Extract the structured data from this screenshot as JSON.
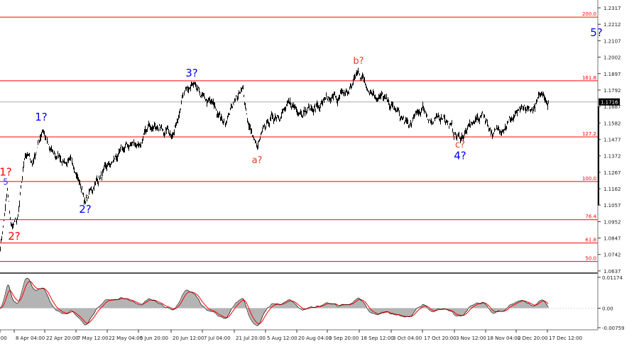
{
  "chart_data": {
    "type": "line",
    "title": "",
    "ylim": [
      1.0623,
      1.2367
    ],
    "y_ticks": [
      "1.2317",
      "1.2212",
      "1.2107",
      "1.2002",
      "1.1897",
      "1.1792",
      "1.1687",
      "1.1582",
      "1.1477",
      "1.1372",
      "1.1267",
      "1.1162",
      "1.1057",
      "1.0952",
      "1.0847",
      "1.0742",
      "1.0637"
    ],
    "x_ticks": [
      "2:00",
      "8 Apr 04:00",
      "22 Apr 20:00",
      "7 May 12:00",
      "22 May 04:00",
      "5 Jun 20:00",
      "20 Jun 12:00",
      "7 Jul 04:00",
      "21 Jul 20:00",
      "5 Aug 12:00",
      "20 Aug 04:00",
      "3 Sep 20:00",
      "18 Sep 12:00",
      "3 Oct 04:00",
      "17 Oct 20:00",
      "3 Nov 12:00",
      "18 Nov 04:00",
      "2 Dec 20:00",
      "17 Dec 12:00"
    ],
    "current_price": "1.1716",
    "price_series": {
      "bar": [
        0,
        10,
        15,
        25,
        35,
        45,
        60,
        70,
        90,
        105,
        120,
        135,
        150,
        165,
        180,
        200,
        215,
        230,
        245,
        255,
        270,
        285,
        300,
        315,
        330,
        342,
        350,
        362,
        375,
        390,
        410,
        430,
        450,
        470,
        490,
        505,
        520,
        540,
        560,
        575,
        595,
        610,
        625,
        640,
        648,
        665,
        680,
        695,
        710,
        730,
        750,
        765,
        772
      ],
      "close": [
        1.0782,
        1.1144,
        1.0917,
        1.0963,
        1.1393,
        1.1325,
        1.1552,
        1.1393,
        1.1348,
        1.1303,
        1.1076,
        1.1212,
        1.128,
        1.137,
        1.1438,
        1.1461,
        1.1597,
        1.1529,
        1.1529,
        1.1733,
        1.1814,
        1.1733,
        1.1688,
        1.1574,
        1.1733,
        1.1778,
        1.1574,
        1.1416,
        1.1574,
        1.1642,
        1.1688,
        1.1665,
        1.1688,
        1.1733,
        1.1778,
        1.1914,
        1.1801,
        1.1733,
        1.1642,
        1.1552,
        1.1688,
        1.1574,
        1.1642,
        1.1506,
        1.1484,
        1.1574,
        1.1642,
        1.1506,
        1.1574,
        1.1642,
        1.1665,
        1.1778,
        1.171
      ]
    },
    "fib_levels": [
      {
        "label": "200.0",
        "price": 1.2258
      },
      {
        "label": "161.8",
        "price": 1.1851
      },
      {
        "label": "127.2",
        "price": 1.1493
      },
      {
        "label": "100.0",
        "price": 1.1208
      },
      {
        "label": "76.4",
        "price": 1.0964
      },
      {
        "label": "61.8",
        "price": 1.0815
      },
      {
        "label": "50.0",
        "price": 1.0697
      }
    ],
    "wave_labels": [
      {
        "text": "5",
        "bar": 8,
        "price": 1.1186,
        "color": "#3333ff",
        "size": 12
      },
      {
        "text": "1?",
        "bar": 8,
        "price": 1.1246,
        "color": "#ff0000",
        "size": 15
      },
      {
        "text": "2?",
        "bar": 20,
        "price": 1.0836,
        "color": "#ff0000",
        "size": 15
      },
      {
        "text": "1?",
        "bar": 58,
        "price": 1.1597,
        "color": "#0000ff",
        "size": 15
      },
      {
        "text": "2?",
        "bar": 120,
        "price": 1.1008,
        "color": "#0000ff",
        "size": 15
      },
      {
        "text": "3?",
        "bar": 270,
        "price": 1.1878,
        "color": "#0000ff",
        "size": 15
      },
      {
        "text": "a?",
        "bar": 362,
        "price": 1.1325,
        "color": "#e0402a",
        "size": 13
      },
      {
        "text": "b?",
        "bar": 505,
        "price": 1.196,
        "color": "#e0402a",
        "size": 13
      },
      {
        "text": "c?",
        "bar": 648,
        "price": 1.1425,
        "color": "#e0402a",
        "size": 13
      },
      {
        "text": "4?",
        "bar": 648,
        "price": 1.135,
        "color": "#0000ff",
        "size": 15
      },
      {
        "text": "5?",
        "bar": 840,
        "price": 1.2135,
        "color": "#0000ff",
        "size": 15
      }
    ],
    "oscillator": {
      "ticks": [
        "0.01174",
        "0.00",
        "-0.00759"
      ],
      "ylim": [
        -0.0082,
        0.0128
      ]
    }
  },
  "colors": {
    "fib": "#ff0000",
    "price": "#000000",
    "osc_hist": "#b4b4b4",
    "osc_signal": "#ff0000"
  }
}
